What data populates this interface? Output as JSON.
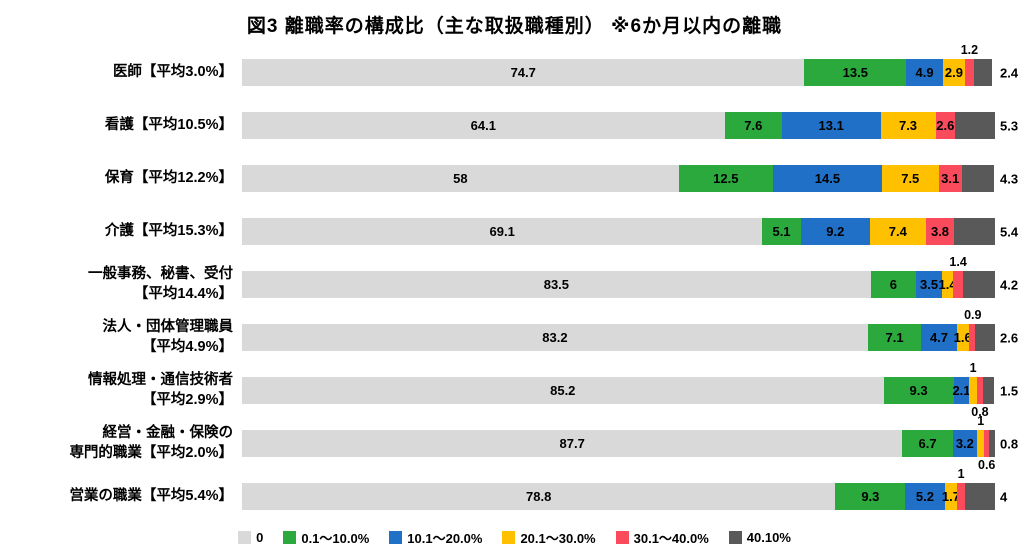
{
  "title": "図3 離職率の構成比（主な取扱職種別） ※6か月以内の離職",
  "chart_data": {
    "type": "bar",
    "orientation": "horizontal",
    "stacked": true,
    "unit": "%",
    "xlim": [
      0,
      100
    ],
    "grid": false,
    "legend_position": "bottom",
    "legend": [
      {
        "label": "0",
        "color": "#D9D9D9"
      },
      {
        "label": "0.1～10.0%",
        "color": "#2CA93C"
      },
      {
        "label": "10.1～20.0%",
        "color": "#2170C8"
      },
      {
        "label": "20.1～30.0%",
        "color": "#FFC000"
      },
      {
        "label": "30.1～40.0%",
        "color": "#FA4B5C"
      },
      {
        "label": "40.10%",
        "color": "#595959"
      }
    ],
    "rows": [
      {
        "label_lines": [
          "医師【平均3.0%】"
        ],
        "values": [
          74.7,
          13.5,
          4.9,
          2.9,
          1.2,
          2.4
        ],
        "display": [
          "74.7",
          "13.5",
          "4.9",
          "2.9",
          "1.2",
          "2.4"
        ],
        "placements": [
          "in",
          "in",
          "in",
          "in",
          "above",
          "right"
        ]
      },
      {
        "label_lines": [
          "看護【平均10.5%】"
        ],
        "values": [
          64.1,
          7.6,
          13.1,
          7.3,
          2.6,
          5.3
        ],
        "display": [
          "64.1",
          "7.6",
          "13.1",
          "7.3",
          "2.6",
          "5.3"
        ],
        "placements": [
          "in",
          "in",
          "in",
          "in",
          "in",
          "right"
        ]
      },
      {
        "label_lines": [
          "保育【平均12.2%】"
        ],
        "values": [
          58,
          12.5,
          14.5,
          7.5,
          3.1,
          4.3
        ],
        "display": [
          "58",
          "12.5",
          "14.5",
          "7.5",
          "3.1",
          "4.3"
        ],
        "placements": [
          "in",
          "in",
          "in",
          "in",
          "in",
          "right"
        ]
      },
      {
        "label_lines": [
          "介護【平均15.3%】"
        ],
        "values": [
          69.1,
          5.1,
          9.2,
          7.4,
          3.8,
          5.4
        ],
        "display": [
          "69.1",
          "5.1",
          "9.2",
          "7.4",
          "3.8",
          "5.4"
        ],
        "placements": [
          "in",
          "in",
          "in",
          "in",
          "in",
          "right"
        ]
      },
      {
        "label_lines": [
          "一般事務、秘書、受付",
          "【平均14.4%】"
        ],
        "values": [
          83.5,
          6,
          3.5,
          1.4,
          1.4,
          4.2
        ],
        "display": [
          "83.5",
          "6",
          "3.5",
          "1.4",
          "1.4",
          "4.2"
        ],
        "placements": [
          "in",
          "in",
          "in",
          "in",
          "above",
          "right"
        ]
      },
      {
        "label_lines": [
          "法人・団体管理職員",
          "【平均4.9%】"
        ],
        "values": [
          83.2,
          7.1,
          4.7,
          1.6,
          0.9,
          2.6
        ],
        "display": [
          "83.2",
          "7.1",
          "4.7",
          "1.6",
          "0.9",
          "2.6"
        ],
        "placements": [
          "in",
          "in",
          "in",
          "in",
          "above",
          "right"
        ]
      },
      {
        "label_lines": [
          "情報処理・通信技術者",
          "【平均2.9%】"
        ],
        "values": [
          85.2,
          9.3,
          2.1,
          1,
          0.8,
          1.5
        ],
        "display": [
          "85.2",
          "9.3",
          "2.1",
          "1",
          "0.8",
          "1.5"
        ],
        "placements": [
          "in",
          "in",
          "in",
          "above",
          "below",
          "right"
        ]
      },
      {
        "label_lines": [
          "経営・金融・保険の",
          "専門的職業【平均2.0%】"
        ],
        "values": [
          87.7,
          6.7,
          3.2,
          1,
          0.6,
          0.8
        ],
        "display": [
          "87.7",
          "6.7",
          "3.2",
          "1",
          "0.6",
          "0.8"
        ],
        "placements": [
          "in",
          "in",
          "in",
          "above",
          "below",
          "right"
        ]
      },
      {
        "label_lines": [
          "営業の職業【平均5.4%】"
        ],
        "values": [
          78.8,
          9.3,
          5.2,
          1.7,
          1,
          4
        ],
        "display": [
          "78.8",
          "9.3",
          "5.2",
          "1.7",
          "1",
          "4"
        ],
        "placements": [
          "in",
          "in",
          "in",
          "in",
          "above",
          "right"
        ]
      }
    ]
  }
}
